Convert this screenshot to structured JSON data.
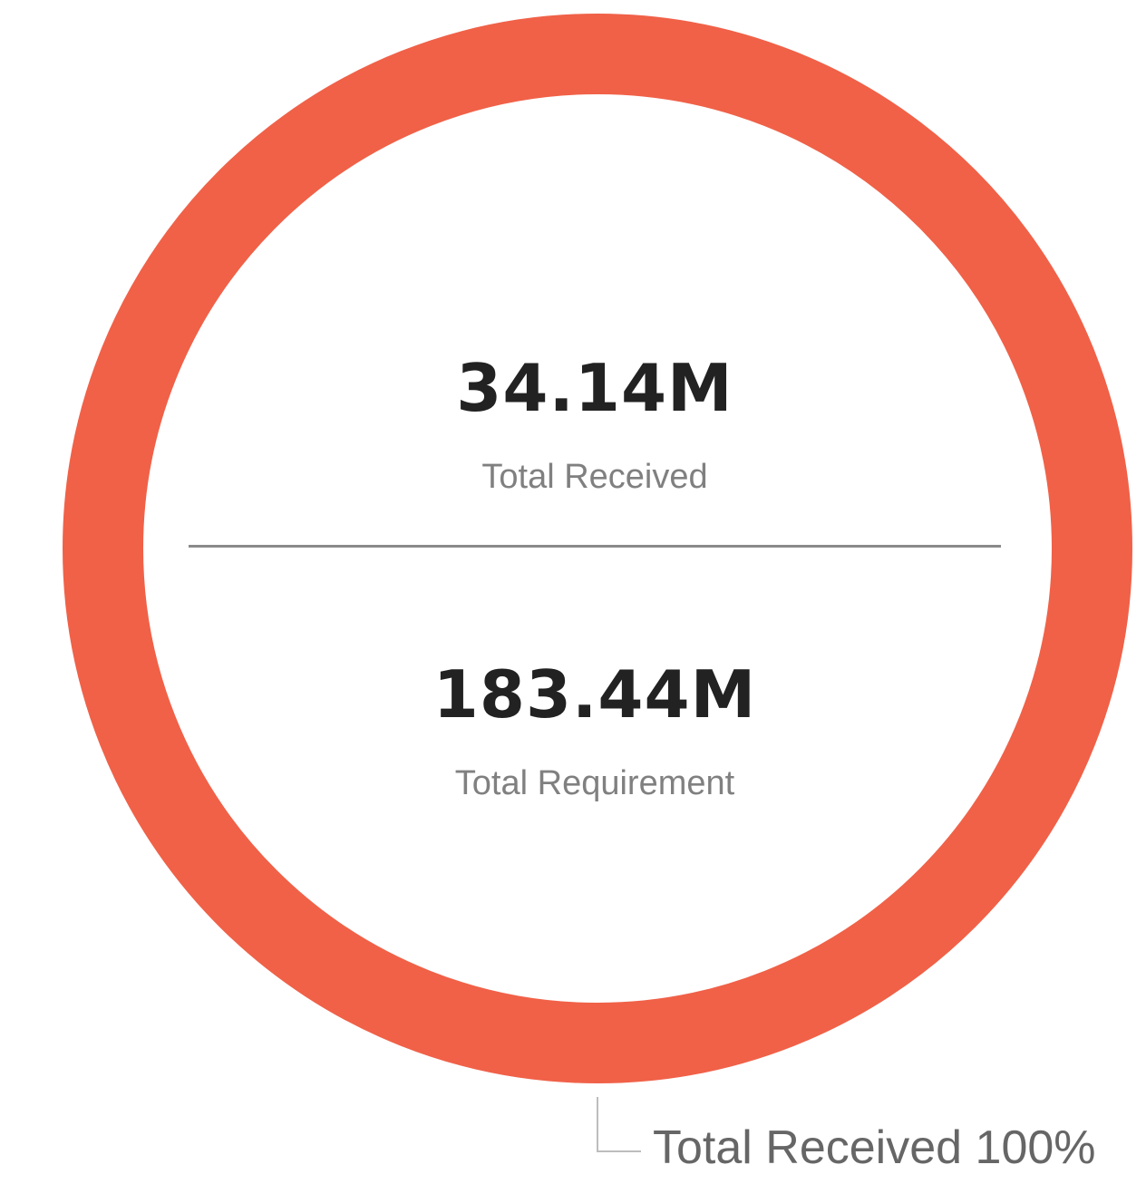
{
  "chart_data": {
    "type": "pie",
    "variant": "donut",
    "categories": [
      "Total Received"
    ],
    "values": [
      100
    ],
    "colors": [
      "#f06148"
    ],
    "data_labels": [
      "Total Received 100%"
    ],
    "center": {
      "top_value": "34.14M",
      "top_label": "Total Received",
      "bottom_value": "183.44M",
      "bottom_label": "Total Requirement"
    },
    "legend": "none"
  }
}
